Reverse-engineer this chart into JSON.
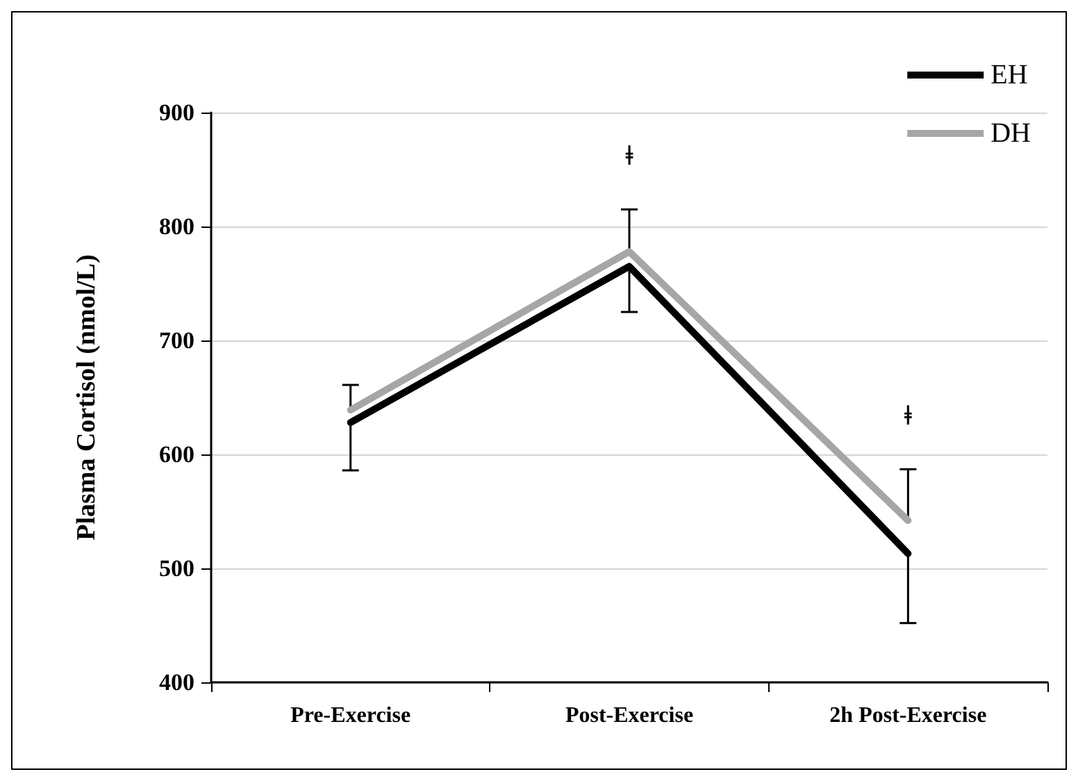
{
  "chart_data": {
    "type": "line",
    "ylabel": "Plasma Cortisol (nmol/L)",
    "categories": [
      "Pre-Exercise",
      "Post-Exercise",
      "2h Post-Exercise"
    ],
    "series": [
      {
        "name": "EH",
        "color": "#000000",
        "values": [
          628,
          765,
          513
        ],
        "errors": [
          [
            586,
            628
          ],
          [
            725,
            765
          ],
          [
            452,
            513
          ]
        ]
      },
      {
        "name": "DH",
        "color": "#a6a6a6",
        "values": [
          639,
          778,
          542
        ],
        "errors": [
          [
            639,
            661
          ],
          [
            778,
            815
          ],
          [
            542,
            587
          ]
        ]
      }
    ],
    "ylim": [
      400,
      900
    ],
    "yticks": [
      400,
      500,
      600,
      700,
      800,
      900
    ],
    "grid": "y",
    "legend": "top right",
    "marker": "none",
    "line_style": "solid",
    "annotations": [
      "ǂ",
      "ǂ"
    ]
  }
}
